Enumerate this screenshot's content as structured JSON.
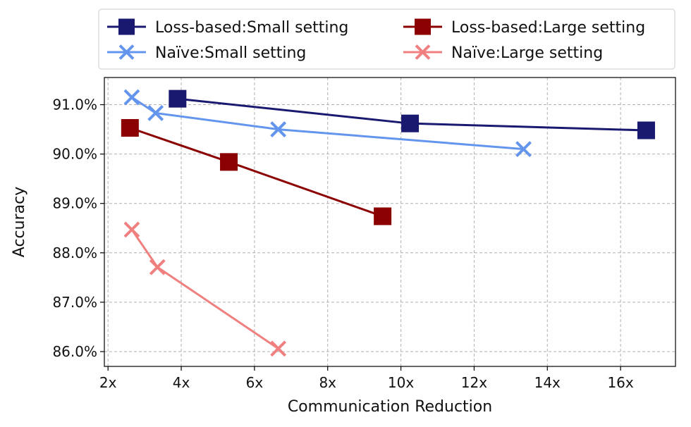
{
  "chart_data": {
    "type": "line",
    "xlabel": "Communication Reduction",
    "ylabel": "Accuracy",
    "xlim": [
      1.9,
      17.5
    ],
    "ylim": [
      85.7,
      91.55
    ],
    "x_ticks": [
      2,
      4,
      6,
      8,
      10,
      12,
      14,
      16
    ],
    "x_tick_labels": [
      "2x",
      "4x",
      "6x",
      "8x",
      "10x",
      "12x",
      "14x",
      "16x"
    ],
    "y_ticks": [
      86,
      87,
      88,
      89,
      90,
      91
    ],
    "y_tick_labels": [
      "86.0%",
      "87.0%",
      "88.0%",
      "89.0%",
      "90.0%",
      "91.0%"
    ],
    "grid": true,
    "legend_position": "top",
    "series": [
      {
        "name": "Loss-based:Small setting",
        "color": "#191970",
        "marker": "square",
        "x": [
          3.9,
          10.25,
          16.7
        ],
        "y": [
          91.12,
          90.62,
          90.48
        ]
      },
      {
        "name": "Loss-based:Large setting",
        "color": "#8b0000",
        "marker": "square",
        "x": [
          2.6,
          5.3,
          9.5
        ],
        "y": [
          90.53,
          89.84,
          88.74
        ]
      },
      {
        "name": "Naïve:Small setting",
        "color": "#6495ed",
        "marker": "x",
        "x": [
          2.65,
          3.3,
          6.65,
          13.35
        ],
        "y": [
          91.15,
          90.83,
          90.5,
          90.1
        ]
      },
      {
        "name": "Naïve:Large setting",
        "color": "#f08080",
        "marker": "x",
        "x": [
          2.65,
          3.35,
          6.65
        ],
        "y": [
          88.47,
          87.71,
          86.06
        ]
      }
    ]
  }
}
